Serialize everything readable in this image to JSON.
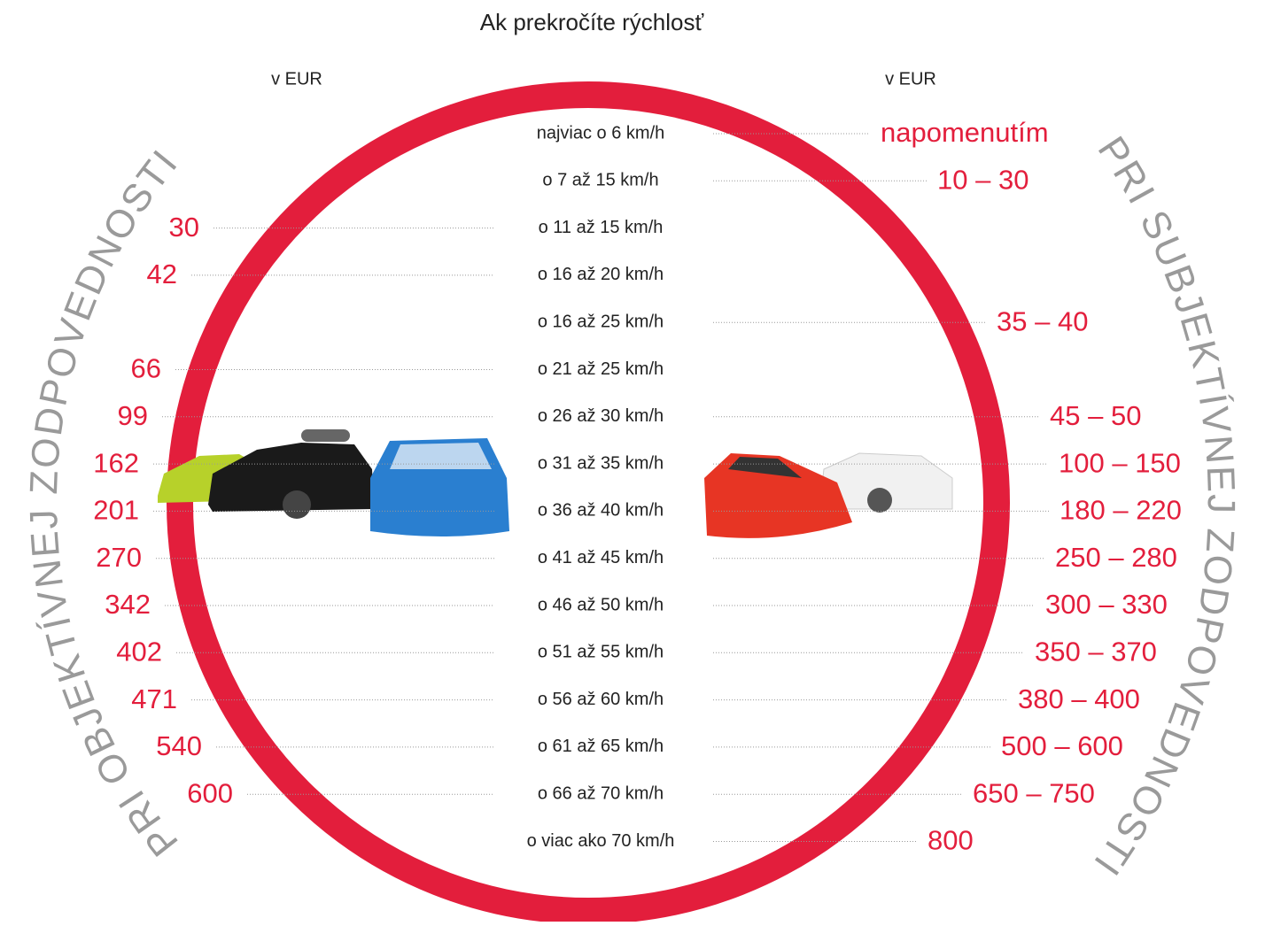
{
  "title": "Ak prekročíte rýchlosť",
  "left_header": "v EUR",
  "right_header": "v EUR",
  "left_side_label": "PRI OBJEKTÍVNEJ ZODPOVEDNOSTI",
  "right_side_label": "PRI SUBJEKTÍVNEJ ZODPOVEDNOSTI",
  "rows": [
    {
      "speed": "najviac o 6 km/h",
      "subjective": "napomenutím"
    },
    {
      "speed": "o 7 až 15 km/h",
      "subjective": "10 – 30"
    },
    {
      "speed": "o 11 až 15 km/h",
      "objective": "30"
    },
    {
      "speed": "o 16 až 20 km/h",
      "objective": "42"
    },
    {
      "speed": "o 16 až 25 km/h",
      "subjective": "35 – 40"
    },
    {
      "speed": "o 21 až 25 km/h",
      "objective": "66"
    },
    {
      "speed": "o 26 až 30 km/h",
      "objective": "99",
      "subjective": "45 – 50"
    },
    {
      "speed": "o 31 až 35 km/h",
      "objective": "162",
      "subjective": "100 – 150"
    },
    {
      "speed": "o 36 až 40 km/h",
      "objective": "201",
      "subjective": "180 – 220"
    },
    {
      "speed": "o 41 až 45 km/h",
      "objective": "270",
      "subjective": "250 – 280"
    },
    {
      "speed": "o 46 až 50 km/h",
      "objective": "342",
      "subjective": "300 – 330"
    },
    {
      "speed": "o 51 až 55 km/h",
      "objective": "402",
      "subjective": "350 – 370"
    },
    {
      "speed": "o 56 až 60 km/h",
      "objective": "471",
      "subjective": "380 – 400"
    },
    {
      "speed": "o 61 až 65 km/h",
      "objective": "540",
      "subjective": "500 – 600"
    },
    {
      "speed": "o 66 až 70 km/h",
      "objective": "600",
      "subjective": "650 – 750"
    },
    {
      "speed": "o viac ako 70 km/h",
      "subjective": "800"
    }
  ]
}
